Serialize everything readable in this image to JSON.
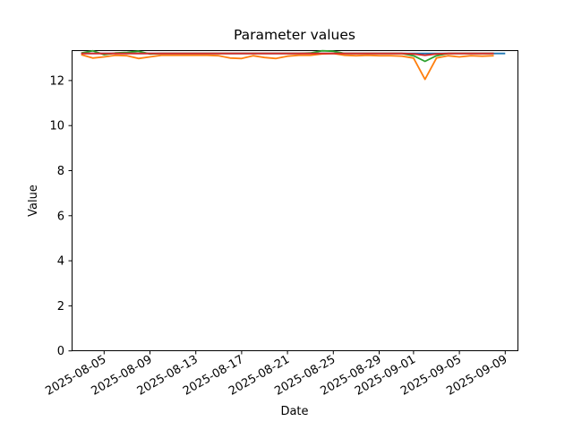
{
  "figure": {
    "title": "Parameter values",
    "xlabel": "Date",
    "ylabel": "Value"
  },
  "chart_data": {
    "type": "line",
    "title": "Parameter values",
    "xlabel": "Date",
    "ylabel": "Value",
    "grid": false,
    "legend": "none",
    "ylim": [
      0,
      13.33
    ],
    "y_ticks": [
      0,
      2,
      4,
      6,
      8,
      10,
      12
    ],
    "x_tick_labels": [
      "2025-08-05",
      "2025-08-09",
      "2025-08-13",
      "2025-08-17",
      "2025-08-21",
      "2025-08-25",
      "2025-08-29",
      "2025-09-01",
      "2025-09-05",
      "2025-09-09"
    ],
    "x": [
      "2025-08-03",
      "2025-08-04",
      "2025-08-05",
      "2025-08-06",
      "2025-08-07",
      "2025-08-08",
      "2025-08-09",
      "2025-08-10",
      "2025-08-11",
      "2025-08-12",
      "2025-08-13",
      "2025-08-14",
      "2025-08-15",
      "2025-08-16",
      "2025-08-17",
      "2025-08-18",
      "2025-08-19",
      "2025-08-20",
      "2025-08-21",
      "2025-08-22",
      "2025-08-23",
      "2025-08-24",
      "2025-08-25",
      "2025-08-26",
      "2025-08-27",
      "2025-08-28",
      "2025-08-29",
      "2025-08-30",
      "2025-08-31",
      "2025-09-01",
      "2025-09-02",
      "2025-09-03",
      "2025-09-04",
      "2025-09-05",
      "2025-09-06",
      "2025-09-07",
      "2025-09-08",
      "2025-09-09"
    ],
    "series": [
      {
        "name": "blue",
        "color": "#1f77b4",
        "values": [
          13.2,
          13.2,
          13.2,
          13.2,
          13.2,
          13.2,
          13.2,
          13.2,
          13.2,
          13.2,
          13.2,
          13.2,
          13.2,
          13.2,
          13.2,
          13.2,
          13.2,
          13.2,
          13.2,
          13.2,
          13.2,
          13.2,
          13.2,
          13.2,
          13.2,
          13.2,
          13.2,
          13.2,
          13.2,
          13.2,
          13.2,
          13.2,
          13.2,
          13.2,
          13.2,
          13.2,
          13.2,
          13.2
        ]
      },
      {
        "name": "orange",
        "color": "#ff7f0e",
        "values": [
          13.15,
          13.0,
          13.05,
          13.12,
          13.1,
          12.98,
          13.05,
          13.12,
          13.12,
          13.12,
          13.12,
          13.12,
          13.1,
          13.0,
          12.98,
          13.1,
          13.02,
          12.98,
          13.08,
          13.12,
          13.12,
          13.18,
          13.2,
          13.12,
          13.1,
          13.12,
          13.1,
          13.1,
          13.08,
          13.0,
          12.05,
          13.0,
          13.1,
          13.05,
          13.1,
          13.08,
          13.1,
          null
        ]
      },
      {
        "name": "green",
        "color": "#2ca02c",
        "values": [
          13.22,
          13.32,
          13.15,
          13.22,
          13.25,
          13.3,
          13.18,
          13.2,
          13.2,
          13.2,
          13.2,
          13.2,
          13.2,
          13.2,
          13.2,
          13.2,
          13.2,
          13.2,
          13.2,
          13.2,
          13.22,
          13.32,
          13.3,
          13.2,
          13.2,
          13.2,
          13.2,
          13.2,
          13.2,
          13.1,
          12.85,
          13.1,
          13.2,
          13.2,
          13.2,
          13.2,
          13.2,
          null
        ]
      },
      {
        "name": "red",
        "color": "#d62728",
        "values": [
          13.2,
          13.2,
          13.2,
          13.2,
          13.2,
          13.2,
          13.2,
          13.2,
          13.2,
          13.2,
          13.2,
          13.2,
          13.2,
          13.2,
          13.2,
          13.2,
          13.2,
          13.2,
          13.2,
          13.2,
          13.2,
          13.2,
          13.2,
          13.2,
          13.2,
          13.2,
          13.2,
          13.2,
          13.2,
          13.18,
          13.12,
          13.18,
          13.2,
          13.2,
          13.2,
          13.2,
          13.2,
          null
        ]
      }
    ]
  }
}
